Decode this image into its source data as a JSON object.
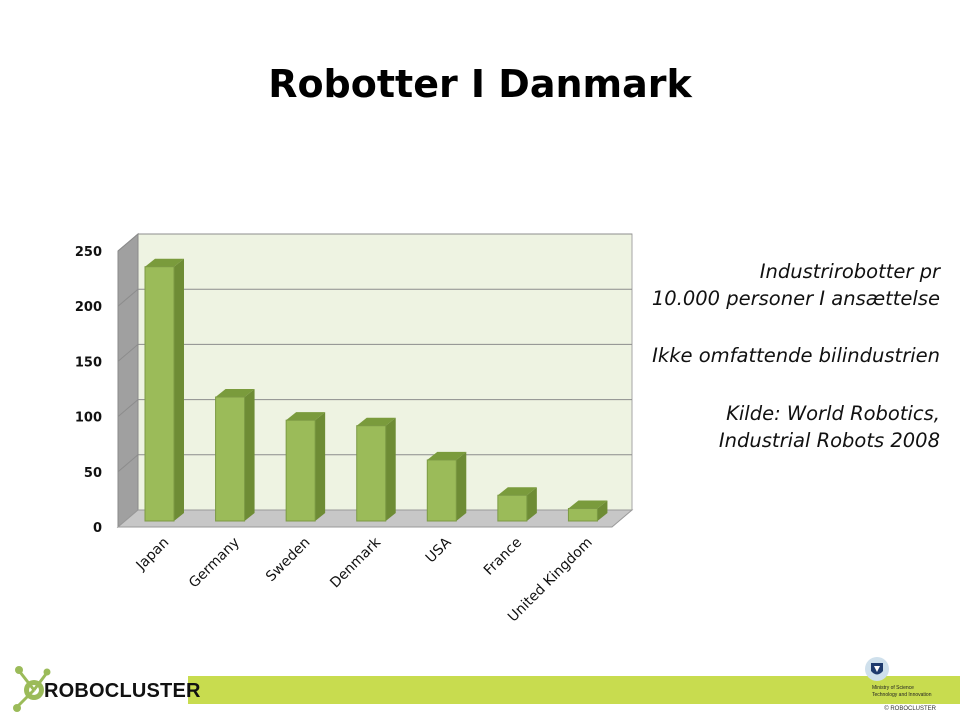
{
  "slide": {
    "title": "Robotter I Danmark"
  },
  "notes": {
    "line1": "Industrirobotter pr",
    "line2": "10.000 personer I ansættelse",
    "line3": "Ikke omfattende bilindustrien",
    "line4": "Kilde: World Robotics,",
    "line5": "Industrial Robots 2008"
  },
  "chart_data": {
    "type": "bar",
    "categories": [
      "Japan",
      "Germany",
      "Sweden",
      "Denmark",
      "USA",
      "France",
      "United Kingdom"
    ],
    "values": [
      243,
      125,
      104,
      99,
      68,
      36,
      24
    ],
    "ylim": [
      0,
      250
    ],
    "yticks": [
      0,
      50,
      100,
      150,
      200,
      250
    ],
    "grid": true,
    "legend": "none",
    "bar_color": "#9bbb59",
    "bar_side_color": "#6e8c35",
    "bar_top_color": "#7a9b3c",
    "wall_color": "#eef3e2"
  },
  "footer": {
    "logo_text": "ROBOCLUSTER",
    "ministry_line1": "Ministry of Science",
    "ministry_line2": "Technology and Innovation",
    "copyright": "© ROBOCLUSTER",
    "band_color": "#c8dc4f"
  }
}
